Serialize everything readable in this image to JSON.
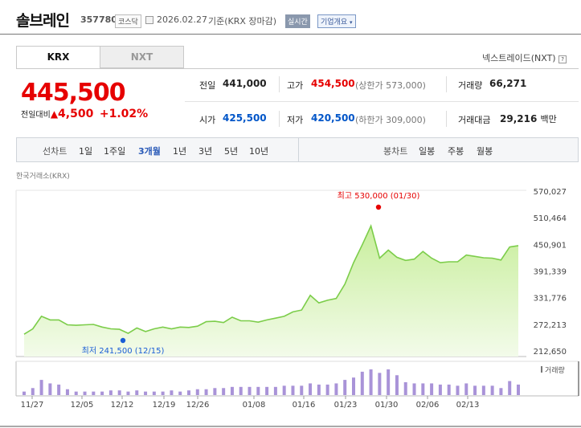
{
  "header": {
    "name": "솔브레인",
    "code": "357780",
    "market_badge": "코스닥",
    "date_text": "2026.02.27",
    "basis_text": "기준(KRX 장마감)",
    "realtime_button": "실시간",
    "overview_button": "기업개요"
  },
  "tabs": {
    "krx": "KRX",
    "nxt": "NXT"
  },
  "nextrade_link": "넥스트레이드(NXT)",
  "quote": {
    "price": "445,500",
    "change_label": "전일대비",
    "change_value": "4,500",
    "change_pct": "+1.02%",
    "prev_label": "전일",
    "prev_value": "441,000",
    "high_label": "고가",
    "high_value": "454,500",
    "upper_limit": "(상한가 573,000)",
    "volume_label": "거래량",
    "volume_value": "66,271",
    "open_label": "시가",
    "open_value": "425,500",
    "low_label": "저가",
    "low_value": "420,500",
    "lower_limit": "(하한가 309,000)",
    "amount_label": "거래대금",
    "amount_value": "29,216",
    "amount_unit": "백만"
  },
  "period_bar": {
    "line_chart_label": "선차트",
    "periods": [
      "1일",
      "1주일",
      "3개월",
      "1년",
      "3년",
      "5년",
      "10년"
    ],
    "selected_period": "3개월",
    "candle_label": "봉차트",
    "candles": [
      "일봉",
      "주봉",
      "월봉"
    ]
  },
  "colors": {
    "up": "#e60000",
    "down": "#0055c8",
    "line": "#7ccd4a",
    "area": "#c8ee9c",
    "volume": "#a993d8"
  },
  "chart_data": {
    "type": "area",
    "source_label": "한국거래소(KRX)",
    "y_ticks": [
      570027,
      510464,
      450901,
      391339,
      331776,
      272213,
      212650
    ],
    "ylim": [
      212650,
      570027
    ],
    "x_ticks": [
      "11/27",
      "12/05",
      "12/12",
      "12/19",
      "12/26",
      "01/08",
      "01/16",
      "01/23",
      "01/30",
      "02/06",
      "02/13"
    ],
    "grid": false,
    "values": [
      250000,
      262000,
      290000,
      282000,
      282000,
      271000,
      270000,
      271000,
      272000,
      266000,
      262000,
      261000,
      252000,
      264000,
      256000,
      262000,
      266000,
      262000,
      266000,
      265000,
      268000,
      278000,
      279000,
      276000,
      288000,
      280000,
      280000,
      277000,
      282000,
      286000,
      290000,
      300000,
      304000,
      337000,
      320000,
      326000,
      330000,
      362000,
      410000,
      450000,
      492000,
      420000,
      438000,
      422000,
      415000,
      418000,
      435000,
      420000,
      410000,
      412000,
      412000,
      427000,
      424000,
      421000,
      420000,
      416000,
      445000,
      448000
    ],
    "volume_label": "거래량",
    "volume": [
      3,
      6,
      13,
      10,
      9,
      5,
      3,
      3,
      3,
      3,
      4,
      4,
      3,
      4,
      3,
      3,
      3,
      4,
      3,
      4,
      5,
      5,
      6,
      6,
      7,
      7,
      7,
      7,
      7,
      7,
      8,
      8,
      8,
      10,
      9,
      9,
      10,
      13,
      15,
      20,
      22,
      19,
      22,
      17,
      11,
      10,
      10,
      10,
      9,
      9,
      8,
      10,
      8,
      8,
      8,
      6,
      12,
      9
    ],
    "annotations": {
      "high_text": "최고 530,000 (01/30)",
      "low_text": "최저 241,500 (12/15)"
    }
  }
}
